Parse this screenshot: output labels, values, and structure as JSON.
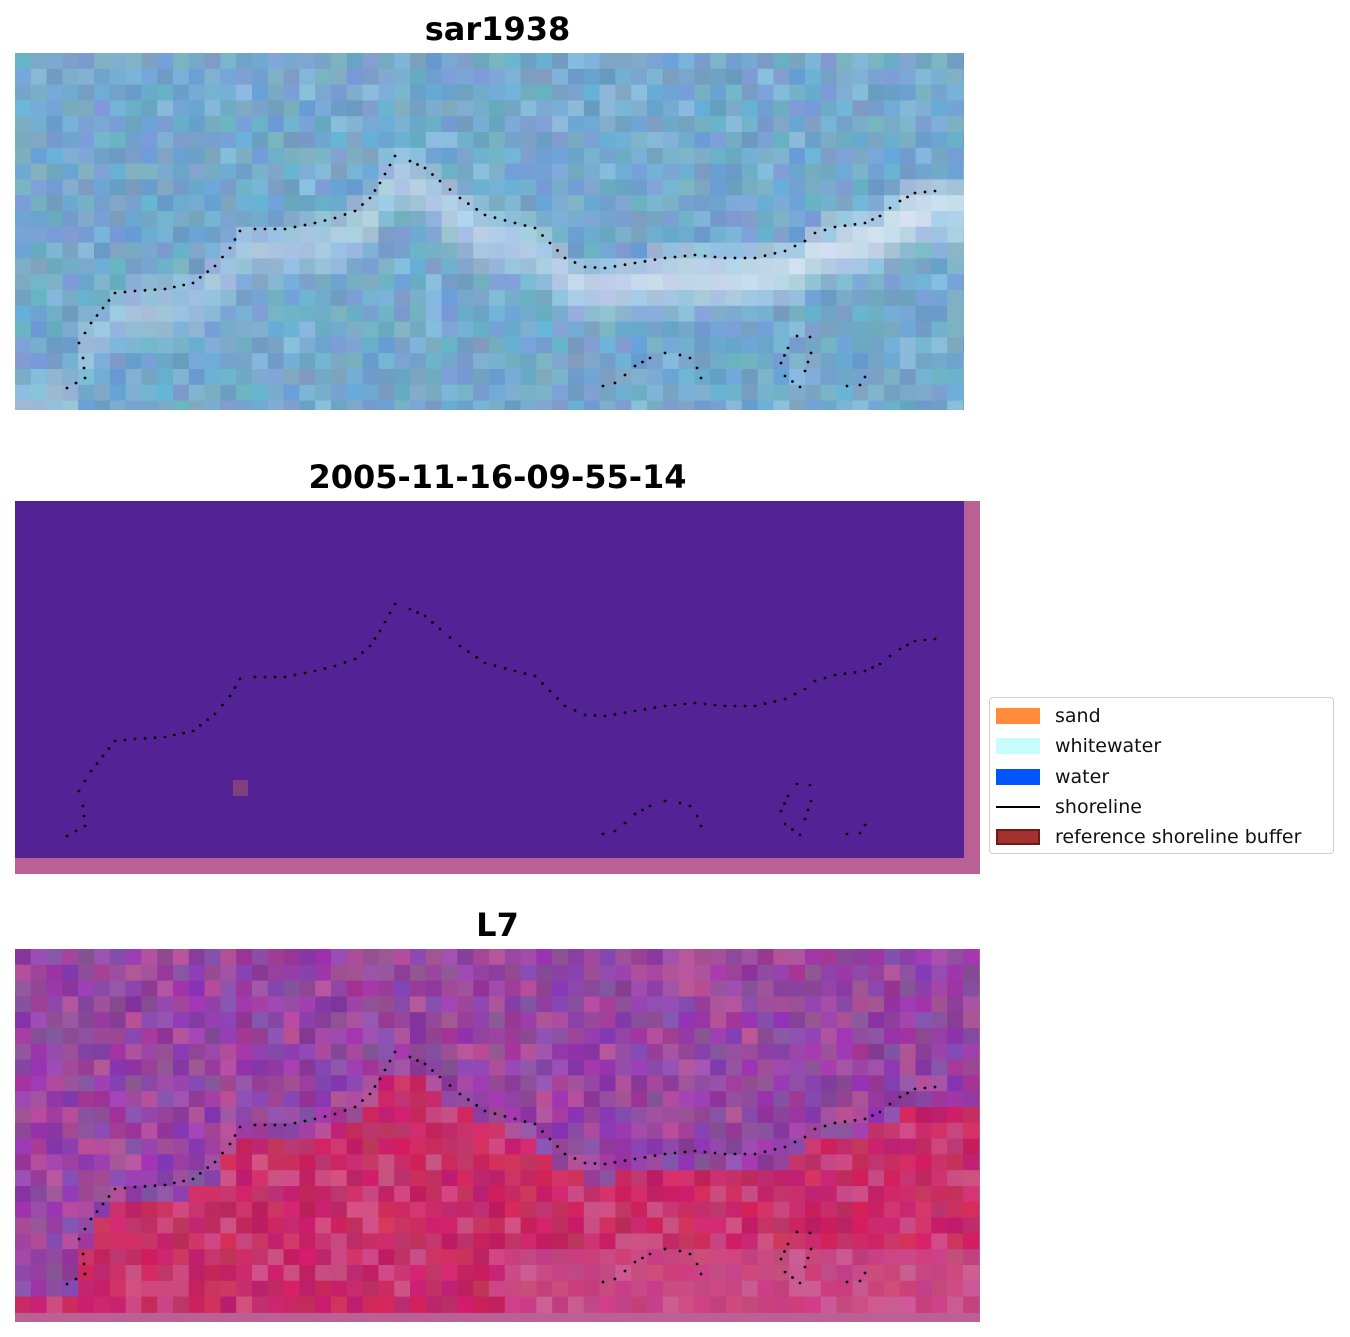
{
  "panels": {
    "top": {
      "title": "sar1938"
    },
    "middle": {
      "title": "2005-11-16-09-55-14"
    },
    "bottom": {
      "title": "L7"
    }
  },
  "legend": {
    "items": [
      {
        "label": "sand",
        "color": "#ff8c3a",
        "kind": "patch"
      },
      {
        "label": "whitewater",
        "color": "#c8fbfb",
        "kind": "patch"
      },
      {
        "label": "water",
        "color": "#0055ff",
        "kind": "patch"
      },
      {
        "label": "shoreline",
        "color": "#000000",
        "kind": "line"
      },
      {
        "label": "reference shoreline buffer",
        "color": "#a3312e",
        "kind": "patch-edged"
      }
    ]
  },
  "colors": {
    "sar_base": "#74a8cc",
    "mask_fill": "#532396",
    "mask_edge": "#bb6095",
    "mask_blob": "#7f407e",
    "l7_sea": "#9445a4",
    "l7_land": "#c82a66"
  }
}
